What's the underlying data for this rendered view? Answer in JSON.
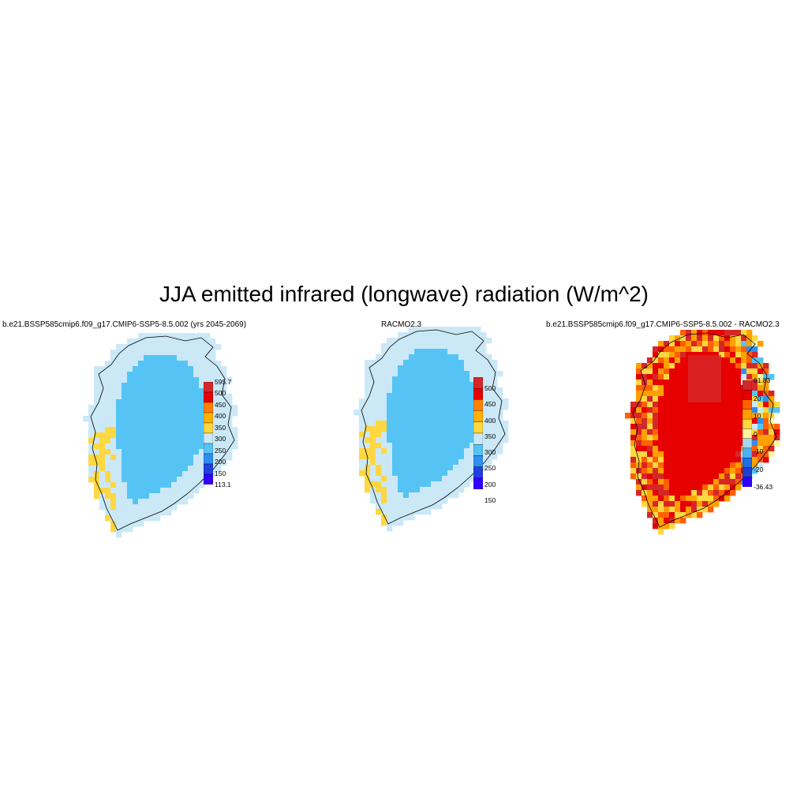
{
  "figure": {
    "title": "JJA emitted infrared (longwave) radiation (W/m^2)"
  },
  "panels": [
    {
      "title": "b.e21.BSSP585cmip6.f09_g17.CMIP6-SSP5-8.5.002 (yrs 2045-2069)",
      "colorbar_labels": [
        "595.7",
        "500",
        "450",
        "400",
        "350",
        "300",
        "250",
        "200",
        "150",
        "113.1"
      ],
      "colorbar_colors": [
        "#d62728",
        "#e60000",
        "#ff8000",
        "#ffb000",
        "#ffd740",
        "#cbe8f7",
        "#55c4f5",
        "#2f8ff0",
        "#2040e0",
        "#3300ff"
      ],
      "map_style": "model"
    },
    {
      "title": "RACMO2.3",
      "colorbar_labels": [
        "500",
        "450",
        "400",
        "350",
        "300",
        "250",
        "200",
        "150"
      ],
      "colorbar_colors": [
        "#d62728",
        "#e60000",
        "#ff8000",
        "#ffb000",
        "#ffd740",
        "#cbe8f7",
        "#55c4f5",
        "#2f8ff0",
        "#2040e0",
        "#3300ff"
      ],
      "map_style": "obs"
    },
    {
      "title": "b.e21.BSSP585cmip6.f09_g17.CMIP6-SSP5-8.5.002 - RACMO2.3",
      "colorbar_labels": [
        "61.83",
        "20",
        "10",
        "0",
        "-10",
        "-20",
        "-36.43"
      ],
      "colorbar_colors": [
        "#d62728",
        "#e60000",
        "#ff6000",
        "#ffa000",
        "#ffd740",
        "#fff5a0",
        "#a8d8f0",
        "#4fb0f0",
        "#1f6fe0",
        "#2040d0",
        "#3300ff"
      ],
      "map_style": "diff"
    }
  ]
}
